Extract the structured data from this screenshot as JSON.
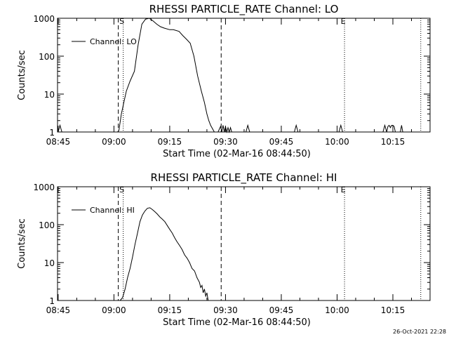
{
  "chart_data": [
    {
      "type": "line",
      "title": "RHESSI PARTICLE_RATE Channel: LO",
      "xlabel": "Start Time (02-Mar-16 08:44:50)",
      "ylabel": "Counts/sec",
      "y_scale": "log",
      "ylim": [
        1,
        1000
      ],
      "xlim": [
        "08:44:50",
        "10:25:00"
      ],
      "x_ticks": [
        "08:45",
        "09:00",
        "09:15",
        "09:30",
        "09:45",
        "10:00",
        "10:15"
      ],
      "y_ticks": [
        "1",
        "10",
        "100",
        "1000"
      ],
      "legend": {
        "label": "Channel: LO",
        "position": "top-left"
      },
      "markers": [
        {
          "label": "S",
          "time": "09:02:30"
        },
        {
          "label": "E",
          "time": "10:02:00"
        }
      ],
      "dashed_lines": [
        "09:01:10",
        "09:28:50"
      ],
      "dotted_lines": [
        "09:02:30",
        "10:02:00",
        "10:22:30"
      ],
      "series": [
        {
          "x": [
            "08:45:00",
            "08:45:30",
            "08:46:00",
            "09:01:00",
            "09:01:20",
            "09:02:00",
            "09:02:40",
            "09:03:20",
            "09:04:20",
            "09:05:30",
            "09:06:30",
            "09:07:30",
            "09:08:30",
            "09:09:30",
            "09:10:30",
            "09:11:30",
            "09:12:30",
            "09:13:30",
            "09:15:00",
            "09:16:00",
            "09:17:30",
            "09:18:30",
            "09:19:30",
            "09:20:30",
            "09:21:30",
            "09:22:30",
            "09:23:30",
            "09:24:20",
            "09:25:00",
            "09:25:30",
            "09:26:00",
            "09:27:00",
            "09:28:00",
            "09:28:40",
            "09:29:00",
            "09:29:20",
            "09:29:40",
            "09:30:00",
            "09:30:20",
            "09:30:40",
            "09:31:00",
            "09:31:20",
            "09:31:40",
            "09:35:30",
            "09:36:00",
            "09:36:30",
            "09:48:30",
            "09:49:00",
            "09:49:30",
            "10:00:30",
            "10:01:00",
            "10:01:30",
            "10:12:20",
            "10:12:50",
            "10:13:20",
            "10:13:40",
            "10:14:00",
            "10:14:20",
            "10:14:40",
            "10:15:00",
            "10:15:20",
            "10:15:40",
            "10:16:00",
            "10:17:00",
            "10:17:20",
            "10:17:40"
          ],
          "y": [
            1,
            1.5,
            1,
            1,
            1.1,
            3,
            6,
            12,
            22,
            40,
            200,
            700,
            950,
            1000,
            850,
            700,
            600,
            550,
            500,
            500,
            450,
            350,
            280,
            220,
            100,
            30,
            12,
            6,
            3,
            2,
            1.5,
            1,
            1,
            1.4,
            1,
            1.5,
            1,
            1.4,
            1,
            1.3,
            1,
            1.3,
            1,
            1,
            1.5,
            1,
            1,
            1.5,
            1,
            1,
            1.5,
            1,
            1,
            1.5,
            1,
            1.4,
            1.5,
            1.3,
            1.5,
            1.5,
            1.4,
            1,
            1,
            1,
            1.5,
            1
          ]
        }
      ]
    },
    {
      "type": "line",
      "title": "RHESSI PARTICLE_RATE Channel: HI",
      "xlabel": "Start Time (02-Mar-16 08:44:50)",
      "ylabel": "Counts/sec",
      "y_scale": "log",
      "ylim": [
        1,
        1000
      ],
      "xlim": [
        "08:44:50",
        "10:25:00"
      ],
      "x_ticks": [
        "08:45",
        "09:00",
        "09:15",
        "09:30",
        "09:45",
        "10:00",
        "10:15"
      ],
      "y_ticks": [
        "1",
        "10",
        "100",
        "1000"
      ],
      "legend": {
        "label": "Channel: HI",
        "position": "top-left"
      },
      "markers": [
        {
          "label": "S",
          "time": "09:02:30"
        },
        {
          "label": "E",
          "time": "10:02:00"
        }
      ],
      "dashed_lines": [
        "09:01:10",
        "09:28:50"
      ],
      "dotted_lines": [
        "09:02:30",
        "10:02:00",
        "10:22:30"
      ],
      "series": [
        {
          "x": [
            "09:01:40",
            "09:02:20",
            "09:03:00",
            "09:03:40",
            "09:04:20",
            "09:05:00",
            "09:05:40",
            "09:06:20",
            "09:07:00",
            "09:07:40",
            "09:08:20",
            "09:09:00",
            "09:09:40",
            "09:10:20",
            "09:11:00",
            "09:11:40",
            "09:12:20",
            "09:13:00",
            "09:13:40",
            "09:14:20",
            "09:15:00",
            "09:15:40",
            "09:16:20",
            "09:17:00",
            "09:17:40",
            "09:18:20",
            "09:19:00",
            "09:19:40",
            "09:20:20",
            "09:21:00",
            "09:21:40",
            "09:22:20",
            "09:23:00",
            "09:23:20",
            "09:23:40",
            "09:24:00",
            "09:24:20",
            "09:24:40",
            "09:25:00",
            "09:25:20"
          ],
          "y": [
            1,
            1.2,
            2,
            4,
            7,
            14,
            30,
            60,
            120,
            180,
            230,
            270,
            280,
            250,
            220,
            190,
            160,
            140,
            120,
            95,
            75,
            60,
            45,
            35,
            28,
            22,
            16,
            13,
            10,
            7,
            6,
            4,
            3,
            2.2,
            2.5,
            1.6,
            2,
            1.3,
            1.6,
            1
          ]
        }
      ]
    }
  ],
  "footer": {
    "timestamp": "26-Oct-2021 22:28"
  }
}
